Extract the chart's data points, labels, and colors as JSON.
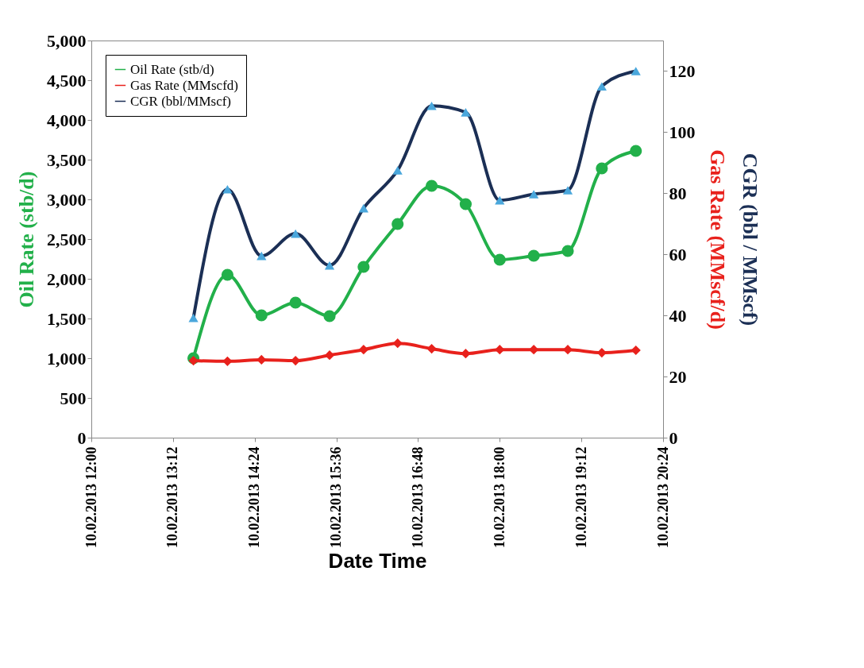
{
  "chart_data": {
    "type": "line",
    "xlabel": "Date Time",
    "ylabel": "Oil Rate (stb/d)",
    "y2label": "Gas Rate (MMscf/d)",
    "y3label": "CGR (bbl / MMscf)",
    "x": [
      "2013-02-10T13:30",
      "2013-02-10T14:00",
      "2013-02-10T14:30",
      "2013-02-10T15:00",
      "2013-02-10T15:30",
      "2013-02-10T16:00",
      "2013-02-10T16:30",
      "2013-02-10T17:00",
      "2013-02-10T17:30",
      "2013-02-10T18:00",
      "2013-02-10T18:30",
      "2013-02-10T19:00",
      "2013-02-10T19:30",
      "2013-02-10T20:00"
    ],
    "xlim": [
      "2013-02-10T12:00",
      "2013-02-10T20:24"
    ],
    "xticks": [
      {
        "value": "2013-02-10T12:00",
        "label": "10.02.2013 12:00"
      },
      {
        "value": "2013-02-10T13:12",
        "label": "10.02.2013 13:12"
      },
      {
        "value": "2013-02-10T14:24",
        "label": "10.02.2013 14:24"
      },
      {
        "value": "2013-02-10T15:36",
        "label": "10.02.2013 15:36"
      },
      {
        "value": "2013-02-10T16:48",
        "label": "10.02.2013 16:48"
      },
      {
        "value": "2013-02-10T18:00",
        "label": "10.02.2013 18:00"
      },
      {
        "value": "2013-02-10T19:12",
        "label": "10.02.2013 19:12"
      },
      {
        "value": "2013-02-10T20:24",
        "label": "10.02.2013 20:24"
      }
    ],
    "ylim": [
      0,
      5000
    ],
    "yticks": [
      {
        "value": 0,
        "label": "0"
      },
      {
        "value": 500,
        "label": "500"
      },
      {
        "value": 1000,
        "label": "1,000"
      },
      {
        "value": 1500,
        "label": "1,500"
      },
      {
        "value": 2000,
        "label": "2,000"
      },
      {
        "value": 2500,
        "label": "2,500"
      },
      {
        "value": 3000,
        "label": "3,000"
      },
      {
        "value": 3500,
        "label": "3,500"
      },
      {
        "value": 4000,
        "label": "4,000"
      },
      {
        "value": 4500,
        "label": "4,500"
      },
      {
        "value": 5000,
        "label": "5,000"
      }
    ],
    "y2lim": [
      0,
      130
    ],
    "y2ticks": [
      0,
      20,
      40,
      60,
      80,
      100,
      120
    ],
    "series": [
      {
        "name": "Oil Rate (stb/d)",
        "color": "#22b04a",
        "marker": "circle",
        "values": [
          1000,
          2050,
          1540,
          1700,
          1530,
          2150,
          2690,
          3170,
          2940,
          2240,
          2290,
          2350,
          3390,
          3610
        ]
      },
      {
        "name": "Gas Rate (MMscfd)",
        "color": "#e8211c",
        "marker": "diamond",
        "axis": "y2",
        "values": [
          25.2,
          25.0,
          25.5,
          25.2,
          27.0,
          28.8,
          30.9,
          29.1,
          27.5,
          28.8,
          28.8,
          28.8,
          27.8,
          28.6
        ]
      },
      {
        "name": "CGR (bbl/MMscf)",
        "color": "#1b2f55",
        "marker": "triangle",
        "axis": "y2",
        "values": [
          39.2,
          81.3,
          59.5,
          66.8,
          56.4,
          75.1,
          87.5,
          108.6,
          106.5,
          77.7,
          79.7,
          81.0,
          115.0,
          120.0
        ]
      }
    ],
    "legend": "top left",
    "grid": false,
    "line_style": "solid"
  }
}
